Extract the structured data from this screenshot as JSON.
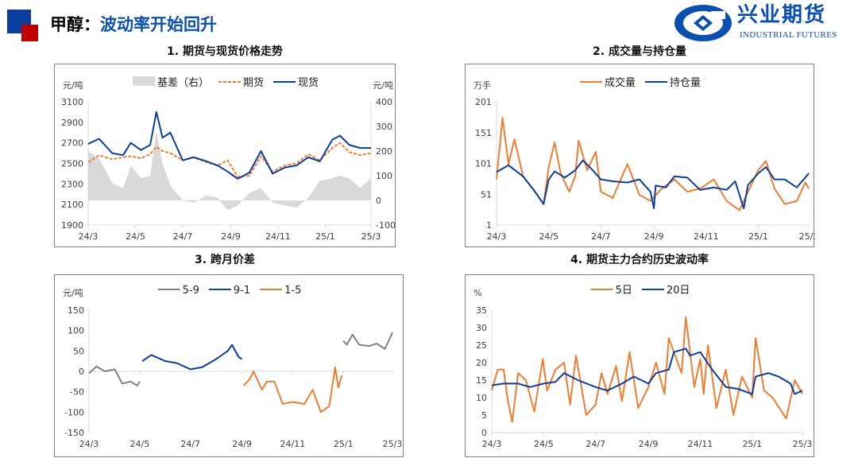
{
  "header": {
    "title_prefix": "甲醇：",
    "title_main": "波动率开始回升"
  },
  "logo": {
    "name_cn": "兴业期货",
    "name_en": "INDUSTRIAL FUTURES"
  },
  "colors": {
    "blue": "#0a3d9e",
    "red": "#c00000",
    "orange": "#ed7d31",
    "gray": "#808080",
    "basis_fill": "#d9d9d9"
  },
  "chart_data": [
    {
      "type": "line",
      "title": "1. 期货与现货价格走势",
      "y_unit": "元/吨",
      "y2_unit": "元/吨",
      "x_range": [
        "2024-03-01",
        "2025-03-01"
      ],
      "x_ticks": [
        [
          "2024-03-01",
          "24/3"
        ],
        [
          "2024-05-01",
          "24/5"
        ],
        [
          "2024-07-01",
          "24/7"
        ],
        [
          "2024-09-01",
          "24/9"
        ],
        [
          "2024-11-01",
          "24/11"
        ],
        [
          "2025-01-01",
          "25/1"
        ],
        [
          "2025-03-01",
          "25/3"
        ]
      ],
      "ylim": [
        1900,
        3100
      ],
      "y_ticks": [
        1900,
        2100,
        2300,
        2500,
        2700,
        2900,
        3100
      ],
      "y2lim": [
        -100,
        400
      ],
      "y2_ticks": [
        -100,
        0,
        100,
        200,
        300,
        400
      ],
      "grid": false,
      "legend": "top",
      "series": [
        {
          "name": "基差（右）",
          "kind": "area",
          "axis": "right",
          "color": "#d9d9d9",
          "x": [
            "2024-03-01",
            "2024-03-15",
            "2024-04-01",
            "2024-04-15",
            "2024-04-25",
            "2024-05-08",
            "2024-05-20",
            "2024-05-28",
            "2024-06-05",
            "2024-06-15",
            "2024-07-01",
            "2024-07-15",
            "2024-08-01",
            "2024-08-15",
            "2024-08-28",
            "2024-09-10",
            "2024-09-25",
            "2024-10-10",
            "2024-10-25",
            "2024-11-10",
            "2024-11-25",
            "2024-12-10",
            "2024-12-25",
            "2025-01-10",
            "2025-01-20",
            "2025-02-01",
            "2025-02-15",
            "2025-03-01"
          ],
          "y": [
            200,
            170,
            70,
            50,
            140,
            90,
            100,
            280,
            150,
            60,
            0,
            -10,
            20,
            10,
            -40,
            -20,
            30,
            50,
            -10,
            -20,
            -30,
            10,
            80,
            90,
            100,
            90,
            50,
            90
          ]
        },
        {
          "name": "期货",
          "kind": "dash",
          "axis": "left",
          "color": "#ed7d31",
          "x": [
            "2024-03-01",
            "2024-03-15",
            "2024-04-01",
            "2024-04-15",
            "2024-04-25",
            "2024-05-08",
            "2024-05-20",
            "2024-05-28",
            "2024-06-05",
            "2024-06-15",
            "2024-07-01",
            "2024-07-15",
            "2024-08-01",
            "2024-08-15",
            "2024-08-28",
            "2024-09-10",
            "2024-09-25",
            "2024-10-10",
            "2024-10-25",
            "2024-11-10",
            "2024-11-25",
            "2024-12-10",
            "2024-12-25",
            "2025-01-10",
            "2025-01-20",
            "2025-02-01",
            "2025-02-15",
            "2025-03-01"
          ],
          "y": [
            2510,
            2580,
            2540,
            2560,
            2570,
            2550,
            2590,
            2660,
            2620,
            2600,
            2530,
            2560,
            2510,
            2480,
            2530,
            2370,
            2380,
            2570,
            2420,
            2480,
            2500,
            2590,
            2530,
            2650,
            2700,
            2610,
            2580,
            2600
          ]
        },
        {
          "name": "现货",
          "kind": "line",
          "axis": "left",
          "color": "#0a3d9e",
          "x": [
            "2024-03-01",
            "2024-03-15",
            "2024-04-01",
            "2024-04-15",
            "2024-04-25",
            "2024-05-08",
            "2024-05-20",
            "2024-05-28",
            "2024-06-05",
            "2024-06-15",
            "2024-07-01",
            "2024-07-15",
            "2024-08-01",
            "2024-08-15",
            "2024-08-28",
            "2024-09-10",
            "2024-09-25",
            "2024-10-10",
            "2024-10-25",
            "2024-11-10",
            "2024-11-25",
            "2024-12-10",
            "2024-12-25",
            "2025-01-10",
            "2025-01-20",
            "2025-02-01",
            "2025-02-15",
            "2025-03-01"
          ],
          "y": [
            2690,
            2740,
            2600,
            2580,
            2700,
            2630,
            2680,
            3000,
            2750,
            2800,
            2530,
            2560,
            2520,
            2480,
            2420,
            2350,
            2410,
            2620,
            2400,
            2460,
            2480,
            2560,
            2520,
            2730,
            2770,
            2680,
            2650,
            2650
          ]
        }
      ]
    },
    {
      "type": "line",
      "title": "2. 成交量与持仓量",
      "y_unit": "万手",
      "x_range": [
        "2024-03-01",
        "2025-03-01"
      ],
      "x_ticks": [
        [
          "2024-03-01",
          "24/3"
        ],
        [
          "2024-05-01",
          "24/5"
        ],
        [
          "2024-07-01",
          "24/7"
        ],
        [
          "2024-09-01",
          "24/9"
        ],
        [
          "2024-11-01",
          "24/11"
        ],
        [
          "2025-01-01",
          "25/1"
        ],
        [
          "2025-03-01",
          "25/3"
        ]
      ],
      "ylim": [
        1,
        201
      ],
      "y_ticks": [
        1,
        51,
        101,
        151,
        201
      ],
      "grid": false,
      "legend": "top",
      "series": [
        {
          "name": "成交量",
          "kind": "line",
          "axis": "left",
          "color": "#ed7d31",
          "x": [
            "2024-03-01",
            "2024-03-08",
            "2024-03-15",
            "2024-03-22",
            "2024-04-01",
            "2024-04-15",
            "2024-04-25",
            "2024-05-01",
            "2024-05-08",
            "2024-05-15",
            "2024-05-25",
            "2024-06-01",
            "2024-06-05",
            "2024-06-15",
            "2024-06-25",
            "2024-07-01",
            "2024-07-15",
            "2024-08-01",
            "2024-08-15",
            "2024-08-28",
            "2024-09-10",
            "2024-09-25",
            "2024-10-10",
            "2024-10-25",
            "2024-11-10",
            "2024-11-25",
            "2024-12-10",
            "2024-12-20",
            "2025-01-01",
            "2025-01-10",
            "2025-01-20",
            "2025-02-01",
            "2025-02-15",
            "2025-02-25",
            "2025-03-01"
          ],
          "y": [
            75,
            175,
            100,
            140,
            80,
            55,
            35,
            95,
            135,
            85,
            55,
            80,
            138,
            90,
            120,
            55,
            45,
            100,
            50,
            40,
            60,
            75,
            55,
            60,
            75,
            40,
            25,
            55,
            90,
            105,
            60,
            35,
            40,
            70,
            60
          ]
        },
        {
          "name": "持仓量",
          "kind": "line",
          "axis": "left",
          "color": "#0a3d9e",
          "x": [
            "2024-03-01",
            "2024-03-15",
            "2024-04-01",
            "2024-04-15",
            "2024-04-25",
            "2024-05-01",
            "2024-05-08",
            "2024-05-20",
            "2024-06-01",
            "2024-06-10",
            "2024-06-20",
            "2024-07-01",
            "2024-07-15",
            "2024-08-01",
            "2024-08-15",
            "2024-08-28",
            "2024-09-01",
            "2024-09-03",
            "2024-09-15",
            "2024-09-25",
            "2024-10-10",
            "2024-10-25",
            "2024-11-10",
            "2024-11-25",
            "2024-12-05",
            "2024-12-15",
            "2024-12-20",
            "2025-01-01",
            "2025-01-10",
            "2025-01-20",
            "2025-02-01",
            "2025-02-15",
            "2025-02-25",
            "2025-03-01"
          ],
          "y": [
            87,
            98,
            80,
            55,
            35,
            75,
            88,
            78,
            90,
            106,
            92,
            75,
            72,
            70,
            75,
            55,
            28,
            65,
            62,
            80,
            78,
            58,
            62,
            58,
            72,
            28,
            66,
            85,
            95,
            75,
            75,
            62,
            78,
            85
          ]
        }
      ]
    },
    {
      "type": "line",
      "title": "3. 跨月价差",
      "y_unit": "元/吨",
      "x_range": [
        "2024-03-01",
        "2025-03-01"
      ],
      "x_ticks": [
        [
          "2024-03-01",
          "24/3"
        ],
        [
          "2024-05-01",
          "24/5"
        ],
        [
          "2024-07-01",
          "24/7"
        ],
        [
          "2024-09-01",
          "24/9"
        ],
        [
          "2024-11-01",
          "24/11"
        ],
        [
          "2025-01-01",
          "25/1"
        ],
        [
          "2025-03-01",
          "25/3"
        ]
      ],
      "ylim": [
        -150,
        150
      ],
      "y_ticks": [
        -150,
        -100,
        -50,
        0,
        50,
        100,
        150
      ],
      "grid": false,
      "legend": "top",
      "series": [
        {
          "name": "5-9",
          "kind": "line",
          "axis": "left",
          "color": "#808080",
          "segments": [
            {
              "x": [
                "2024-03-01",
                "2024-03-10",
                "2024-03-20",
                "2024-04-01",
                "2024-04-10",
                "2024-04-20",
                "2024-04-28",
                "2024-05-01"
              ],
              "y": [
                -5,
                12,
                0,
                5,
                -30,
                -25,
                -35,
                -25
              ]
            },
            {
              "x": [
                "2025-01-01",
                "2025-01-05",
                "2025-01-12",
                "2025-01-20",
                "2025-02-01",
                "2025-02-10",
                "2025-02-20",
                "2025-03-01"
              ],
              "y": [
                75,
                65,
                90,
                65,
                62,
                68,
                55,
                95
              ]
            }
          ]
        },
        {
          "name": "9-1",
          "kind": "line",
          "axis": "left",
          "color": "#0a3d9e",
          "segments": [
            {
              "x": [
                "2024-05-04",
                "2024-05-15",
                "2024-06-01",
                "2024-06-15",
                "2024-07-01",
                "2024-07-15",
                "2024-08-01",
                "2024-08-15",
                "2024-08-20",
                "2024-08-28",
                "2024-09-01"
              ],
              "y": [
                25,
                40,
                25,
                20,
                5,
                10,
                30,
                50,
                65,
                35,
                30
              ]
            }
          ]
        },
        {
          "name": "1-5",
          "kind": "line",
          "axis": "left",
          "color": "#ed7d31",
          "segments": [
            {
              "x": [
                "2024-09-03",
                "2024-09-10",
                "2024-09-15",
                "2024-09-25",
                "2024-10-01",
                "2024-10-10",
                "2024-10-20",
                "2024-11-01",
                "2024-11-15",
                "2024-11-25",
                "2024-12-05",
                "2024-12-15",
                "2024-12-22",
                "2024-12-26",
                "2024-12-30"
              ],
              "y": [
                -35,
                -20,
                0,
                -45,
                -25,
                -25,
                -80,
                -75,
                -80,
                -45,
                -100,
                -85,
                10,
                -40,
                -10
              ]
            }
          ]
        }
      ]
    },
    {
      "type": "line",
      "title": "4. 期货主力合约历史波动率",
      "y_unit": "%",
      "x_range": [
        "2024-03-01",
        "2025-03-01"
      ],
      "x_ticks": [
        [
          "2024-03-01",
          "24/3"
        ],
        [
          "2024-05-01",
          "24/5"
        ],
        [
          "2024-07-01",
          "24/7"
        ],
        [
          "2024-09-01",
          "24/9"
        ],
        [
          "2024-11-01",
          "24/11"
        ],
        [
          "2025-01-01",
          "25/1"
        ],
        [
          "2025-03-01",
          "25/3"
        ]
      ],
      "ylim": [
        0,
        35
      ],
      "y_ticks": [
        0,
        5,
        10,
        15,
        20,
        25,
        30,
        35
      ],
      "grid": false,
      "legend": "top",
      "series": [
        {
          "name": "5日",
          "kind": "line",
          "axis": "left",
          "color": "#ed7d31",
          "x": [
            "2024-03-01",
            "2024-03-08",
            "2024-03-15",
            "2024-03-20",
            "2024-03-25",
            "2024-04-01",
            "2024-04-10",
            "2024-04-20",
            "2024-04-30",
            "2024-05-05",
            "2024-05-15",
            "2024-05-25",
            "2024-06-01",
            "2024-06-08",
            "2024-06-20",
            "2024-07-01",
            "2024-07-08",
            "2024-07-15",
            "2024-07-25",
            "2024-08-01",
            "2024-08-10",
            "2024-08-20",
            "2024-09-01",
            "2024-09-10",
            "2024-09-20",
            "2024-09-25",
            "2024-10-10",
            "2024-10-15",
            "2024-10-25",
            "2024-11-01",
            "2024-11-05",
            "2024-11-10",
            "2024-11-20",
            "2024-12-01",
            "2024-12-10",
            "2024-12-20",
            "2025-01-01",
            "2025-01-05",
            "2025-01-15",
            "2025-01-25",
            "2025-02-10",
            "2025-02-20",
            "2025-03-01"
          ],
          "y": [
            12,
            18,
            18,
            9,
            3,
            17,
            15,
            6,
            21,
            12,
            18,
            20,
            8,
            22,
            5,
            8,
            17,
            11,
            19,
            9,
            23,
            7,
            13,
            20,
            11,
            27,
            17,
            33,
            13,
            21,
            11,
            25,
            7,
            18,
            5,
            16,
            10,
            27,
            12,
            10,
            4,
            15,
            11
          ]
        },
        {
          "name": "20日",
          "kind": "line",
          "axis": "left",
          "color": "#0a3d9e",
          "x": [
            "2024-03-01",
            "2024-03-15",
            "2024-04-01",
            "2024-04-15",
            "2024-05-01",
            "2024-05-15",
            "2024-05-25",
            "2024-06-10",
            "2024-07-01",
            "2024-07-15",
            "2024-08-01",
            "2024-08-15",
            "2024-09-01",
            "2024-09-10",
            "2024-09-25",
            "2024-10-01",
            "2024-10-15",
            "2024-10-20",
            "2024-11-01",
            "2024-11-15",
            "2024-12-01",
            "2024-12-15",
            "2025-01-01",
            "2025-01-05",
            "2025-01-20",
            "2025-02-01",
            "2025-02-15",
            "2025-02-20",
            "2025-03-01"
          ],
          "y": [
            13.5,
            14,
            14,
            13,
            14,
            14.5,
            17,
            15,
            13,
            12,
            14,
            16,
            14,
            17,
            18,
            23,
            24,
            22,
            23,
            18,
            13,
            12.5,
            11,
            16,
            17,
            16,
            14,
            11,
            12
          ]
        }
      ]
    }
  ]
}
